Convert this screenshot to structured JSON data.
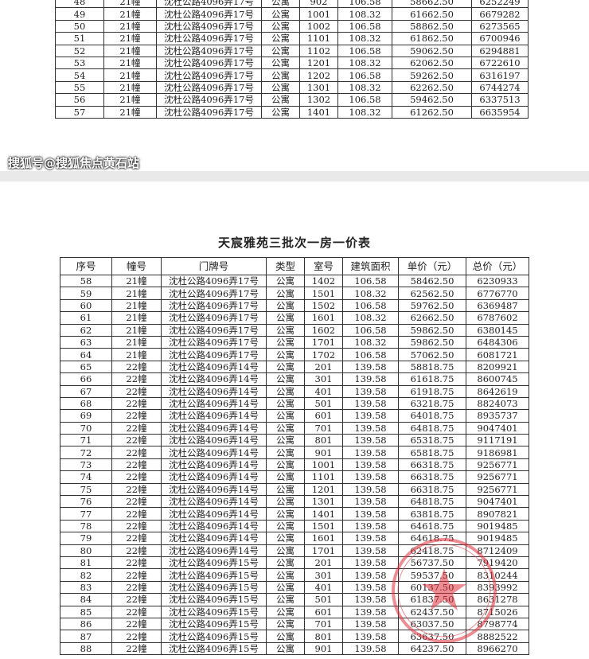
{
  "title": "天宸雅苑三批次一房一价表",
  "headers": [
    "序号",
    "幢号",
    "门牌号",
    "类型",
    "室号",
    "建筑面积",
    "单价（元）",
    "总价（元）"
  ],
  "page1_rows": [
    [
      "48",
      "21幢",
      "沈杜公路4096弄17号",
      "公寓",
      "902",
      "106.58",
      "58662.50",
      "6252249"
    ],
    [
      "49",
      "21幢",
      "沈杜公路4096弄17号",
      "公寓",
      "1001",
      "108.32",
      "61662.50",
      "6679282"
    ],
    [
      "50",
      "21幢",
      "沈杜公路4096弄17号",
      "公寓",
      "1002",
      "106.58",
      "58862.50",
      "6273565"
    ],
    [
      "51",
      "21幢",
      "沈杜公路4096弄17号",
      "公寓",
      "1101",
      "108.32",
      "61862.50",
      "6700946"
    ],
    [
      "52",
      "21幢",
      "沈杜公路4096弄17号",
      "公寓",
      "1102",
      "106.58",
      "59062.50",
      "6294881"
    ],
    [
      "53",
      "21幢",
      "沈杜公路4096弄17号",
      "公寓",
      "1201",
      "108.32",
      "62062.50",
      "6722610"
    ],
    [
      "54",
      "21幢",
      "沈杜公路4096弄17号",
      "公寓",
      "1202",
      "106.58",
      "59262.50",
      "6316197"
    ],
    [
      "55",
      "21幢",
      "沈杜公路4096弄17号",
      "公寓",
      "1301",
      "108.32",
      "62262.50",
      "6744274"
    ],
    [
      "56",
      "21幢",
      "沈杜公路4096弄17号",
      "公寓",
      "1302",
      "106.58",
      "59462.50",
      "6337513"
    ],
    [
      "57",
      "21幢",
      "沈杜公路4096弄17号",
      "公寓",
      "1401",
      "108.32",
      "61262.50",
      "6635954"
    ]
  ],
  "page2_rows": [
    [
      "58",
      "21幢",
      "沈杜公路4096弄17号",
      "公寓",
      "1402",
      "106.58",
      "58462.50",
      "6230933"
    ],
    [
      "59",
      "21幢",
      "沈杜公路4096弄17号",
      "公寓",
      "1501",
      "108.32",
      "62562.50",
      "6776770"
    ],
    [
      "60",
      "21幢",
      "沈杜公路4096弄17号",
      "公寓",
      "1502",
      "106.58",
      "59762.50",
      "6369487"
    ],
    [
      "61",
      "21幢",
      "沈杜公路4096弄17号",
      "公寓",
      "1601",
      "108.32",
      "62662.50",
      "6787602"
    ],
    [
      "62",
      "21幢",
      "沈杜公路4096弄17号",
      "公寓",
      "1602",
      "106.58",
      "59862.50",
      "6380145"
    ],
    [
      "63",
      "21幢",
      "沈杜公路4096弄17号",
      "公寓",
      "1701",
      "108.32",
      "59862.50",
      "6484306"
    ],
    [
      "64",
      "21幢",
      "沈杜公路4096弄17号",
      "公寓",
      "1702",
      "106.58",
      "57062.50",
      "6081721"
    ],
    [
      "65",
      "22幢",
      "沈杜公路4096弄14号",
      "公寓",
      "201",
      "139.58",
      "58818.75",
      "8209921"
    ],
    [
      "66",
      "22幢",
      "沈杜公路4096弄14号",
      "公寓",
      "301",
      "139.58",
      "61618.75",
      "8600745"
    ],
    [
      "67",
      "22幢",
      "沈杜公路4096弄14号",
      "公寓",
      "401",
      "139.58",
      "61918.75",
      "8642619"
    ],
    [
      "68",
      "22幢",
      "沈杜公路4096弄14号",
      "公寓",
      "501",
      "139.58",
      "63218.75",
      "8824073"
    ],
    [
      "69",
      "22幢",
      "沈杜公路4096弄14号",
      "公寓",
      "601",
      "139.58",
      "64018.75",
      "8935737"
    ],
    [
      "70",
      "22幢",
      "沈杜公路4096弄14号",
      "公寓",
      "701",
      "139.58",
      "64818.75",
      "9047401"
    ],
    [
      "71",
      "22幢",
      "沈杜公路4096弄14号",
      "公寓",
      "801",
      "139.58",
      "65318.75",
      "9117191"
    ],
    [
      "72",
      "22幢",
      "沈杜公路4096弄14号",
      "公寓",
      "901",
      "139.58",
      "65818.75",
      "9186981"
    ],
    [
      "73",
      "22幢",
      "沈杜公路4096弄14号",
      "公寓",
      "1001",
      "139.58",
      "66318.75",
      "9256771"
    ],
    [
      "74",
      "22幢",
      "沈杜公路4096弄14号",
      "公寓",
      "1101",
      "139.58",
      "66318.75",
      "9256771"
    ],
    [
      "75",
      "22幢",
      "沈杜公路4096弄14号",
      "公寓",
      "1201",
      "139.58",
      "66318.75",
      "9256771"
    ],
    [
      "76",
      "22幢",
      "沈杜公路4096弄14号",
      "公寓",
      "1301",
      "139.58",
      "64818.75",
      "9047401"
    ],
    [
      "77",
      "22幢",
      "沈杜公路4096弄14号",
      "公寓",
      "1401",
      "139.58",
      "63818.75",
      "8907821"
    ],
    [
      "78",
      "22幢",
      "沈杜公路4096弄14号",
      "公寓",
      "1501",
      "139.58",
      "64618.75",
      "9019485"
    ],
    [
      "79",
      "22幢",
      "沈杜公路4096弄14号",
      "公寓",
      "1601",
      "139.58",
      "64618.75",
      "9019485"
    ],
    [
      "80",
      "22幢",
      "沈杜公路4096弄14号",
      "公寓",
      "1701",
      "139.58",
      "62418.75",
      "8712409"
    ],
    [
      "81",
      "22幢",
      "沈杜公路4096弄15号",
      "公寓",
      "201",
      "139.58",
      "56737.50",
      "7919420"
    ],
    [
      "82",
      "22幢",
      "沈杜公路4096弄15号",
      "公寓",
      "301",
      "139.58",
      "59537.50",
      "8310244"
    ],
    [
      "83",
      "22幢",
      "沈杜公路4096弄15号",
      "公寓",
      "401",
      "139.58",
      "60137.50",
      "8393992"
    ],
    [
      "84",
      "22幢",
      "沈杜公路4096弄15号",
      "公寓",
      "501",
      "139.58",
      "61837.50",
      "8631278"
    ],
    [
      "85",
      "22幢",
      "沈杜公路4096弄15号",
      "公寓",
      "601",
      "139.58",
      "62437.50",
      "8715026"
    ],
    [
      "86",
      "22幢",
      "沈杜公路4096弄15号",
      "公寓",
      "701",
      "139.58",
      "63037.50",
      "8798774"
    ],
    [
      "87",
      "22幢",
      "沈杜公路4096弄15号",
      "公寓",
      "801",
      "139.58",
      "63637.50",
      "8882522"
    ],
    [
      "88",
      "22幢",
      "沈杜公路4096弄15号",
      "公寓",
      "901",
      "139.58",
      "64237.50",
      "8966270"
    ]
  ],
  "watermark": "搜狐号@搜狐焦点黄石站",
  "colors": {
    "stamp": "#e0303a",
    "gap": "#e9e9e9"
  }
}
